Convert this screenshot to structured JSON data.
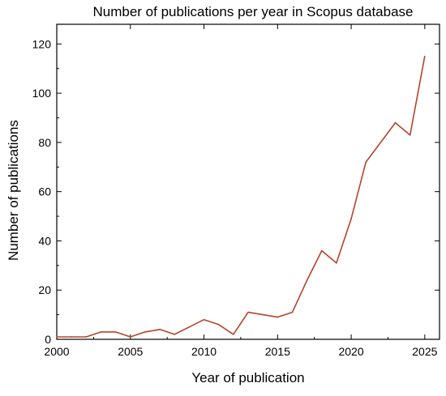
{
  "chart_data": {
    "type": "line",
    "title": "Number of publications per year in Scopus database",
    "xlabel": "Year of publication",
    "ylabel": "Number of publications",
    "xlim": [
      2000,
      2026
    ],
    "ylim": [
      0,
      128
    ],
    "x_ticks": [
      2000,
      2005,
      2010,
      2015,
      2020,
      2025
    ],
    "y_ticks": [
      0,
      20,
      40,
      60,
      80,
      100,
      120
    ],
    "grid": false,
    "legend": "none",
    "line_color": "#b5442a",
    "series": [
      {
        "x": [
          2000,
          2001,
          2002,
          2003,
          2004,
          2005,
          2006,
          2007,
          2008,
          2009,
          2010,
          2011,
          2012,
          2013,
          2014,
          2015,
          2016,
          2017,
          2018,
          2019,
          2020,
          2021,
          2022,
          2023,
          2024,
          2025
        ],
        "values": [
          1,
          1,
          1,
          3,
          3,
          1,
          3,
          4,
          2,
          5,
          8,
          6,
          2,
          11,
          10,
          9,
          11,
          24,
          36,
          31,
          49,
          72,
          80,
          88,
          83,
          115
        ]
      }
    ]
  }
}
